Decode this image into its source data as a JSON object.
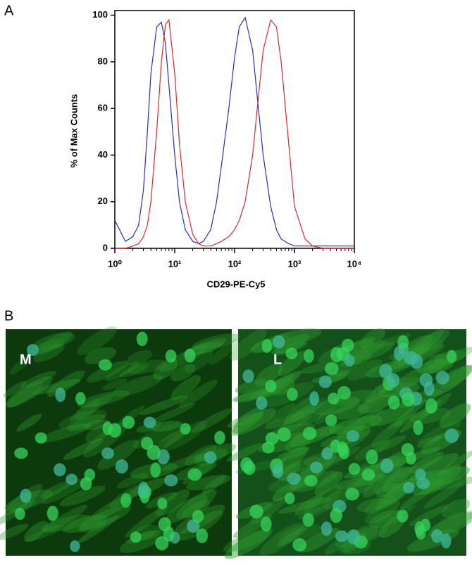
{
  "panel_a": "A",
  "panel_b": "B",
  "chart_data": {
    "type": "line",
    "log_x": true,
    "xlabel": "CD29-PE-Cy5",
    "ylabel": "% of Max Counts",
    "x": [
      1,
      1.5,
      2,
      2.5,
      3,
      3.5,
      4,
      5,
      6,
      7,
      8,
      10,
      12,
      15,
      20,
      25,
      30,
      40,
      50,
      60,
      80,
      100,
      120,
      150,
      200,
      250,
      300,
      400,
      500,
      600,
      800,
      1000,
      1500,
      2000,
      3000,
      5000,
      10000
    ],
    "series": [
      {
        "color": "#2b2bd0",
        "values": [
          12,
          3,
          5,
          10,
          25,
          50,
          75,
          95,
          97,
          88,
          70,
          40,
          20,
          8,
          3,
          2,
          3,
          8,
          20,
          35,
          60,
          82,
          95,
          99,
          85,
          60,
          40,
          18,
          8,
          4,
          2,
          1,
          1,
          1,
          1,
          1,
          1
        ]
      },
      {
        "color": "#e02828",
        "values": [
          0,
          0,
          1,
          2,
          5,
          10,
          20,
          50,
          80,
          96,
          98,
          75,
          45,
          20,
          6,
          2,
          1,
          1,
          2,
          3,
          5,
          8,
          12,
          20,
          40,
          65,
          85,
          98,
          95,
          80,
          45,
          18,
          4,
          1,
          0,
          0,
          0
        ]
      }
    ],
    "xlim": [
      1,
      10000
    ],
    "xticks": [
      {
        "value": 1,
        "label": "10⁰"
      },
      {
        "value": 10,
        "label": "10¹"
      },
      {
        "value": 100,
        "label": "10²"
      },
      {
        "value": 1000,
        "label": "10³"
      },
      {
        "value": 10000,
        "label": "10⁴"
      }
    ],
    "ylim": [
      0,
      102
    ],
    "yticks": [
      0,
      20,
      40,
      60,
      80,
      100
    ]
  },
  "images": [
    {
      "label": "M"
    },
    {
      "label": "L"
    }
  ]
}
